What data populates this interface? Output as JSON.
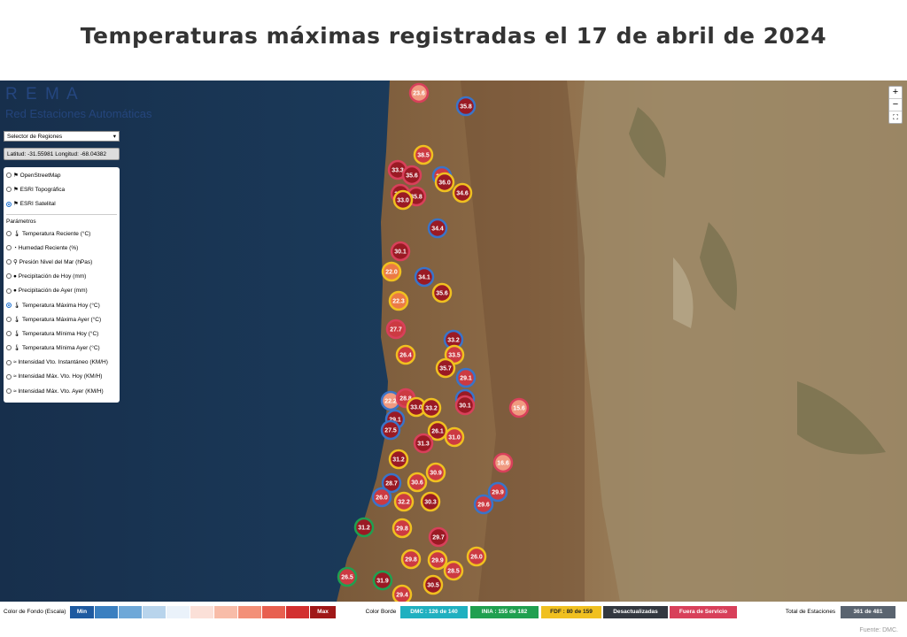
{
  "title": "Temperaturas máximas registradas el 17 de abril de 2024",
  "panel": {
    "brand": "R E M A",
    "subtitle": "Red Estaciones Automáticas",
    "region_selector": "Selector de Regiones",
    "coords": "Latitud: -31.55981 Longitud: -68.04382",
    "layers": [
      "OpenStreetMap",
      "ESRI Topográfica",
      "ESRI Satelital"
    ],
    "params_title": "Parámetros",
    "params": [
      "Temperatura Reciente (°C)",
      "Humedad Reciente (%)",
      "Presión Nivel del Mar (hPas)",
      "Precipitación de Hoy (mm)",
      "Precipitación de Ayer (mm)",
      "Temperatura Máxima Hoy (°C)",
      "Temperatura Máxima Ayer (°C)",
      "Temperatura Mínima Hoy (°C)",
      "Temperatura Mínima Ayer (°C)",
      "Intensidad Vto. Instantáneo (KM/H)",
      "Intensidad Máx. Vto. Hoy (KM/H)",
      "Intensidad Máx. Vto. Ayer (KM/H)"
    ]
  },
  "zoom": [
    "+",
    "−"
  ],
  "markers": [
    "23.6",
    "35.8",
    "38.5",
    "33.3",
    "35.6",
    "37.1",
    "36.0",
    "36.5",
    "35.8",
    "34.6",
    "33.0",
    "34.4",
    "30.1",
    "22.0",
    "34.1",
    "35.6",
    "22.3",
    "27.7",
    "33.2",
    "26.4",
    "33.5",
    "35.7",
    "29.1",
    "22.2",
    "28.8",
    "32.5",
    "33.0",
    "33.2",
    "30.1",
    "15.6",
    "29.1",
    "27.5",
    "26.1",
    "31.3",
    "31.0",
    "16.6",
    "31.2",
    "28.7",
    "30.9",
    "30.6",
    "29.9",
    "26.0",
    "32.2",
    "30.3",
    "29.6",
    "31.2",
    "29.8",
    "29.7",
    "26.0",
    "29.8",
    "29.9",
    "28.5",
    "26.5",
    "31.9",
    "30.5",
    "29.4"
  ],
  "legend": {
    "scale_label": "Color de Fondo (Escala)",
    "min": "Min",
    "max": "Max",
    "border_label": "Color Borde",
    "sources": [
      "DMC : 126 de 140",
      "INIA : 155 de 182",
      "FDF : 80 de 159",
      "Desactualizadas",
      "Fuera de Servicio"
    ],
    "total_label": "Total de Estaciones",
    "total": "361 de 481"
  },
  "footer": "Fuente: DMC."
}
